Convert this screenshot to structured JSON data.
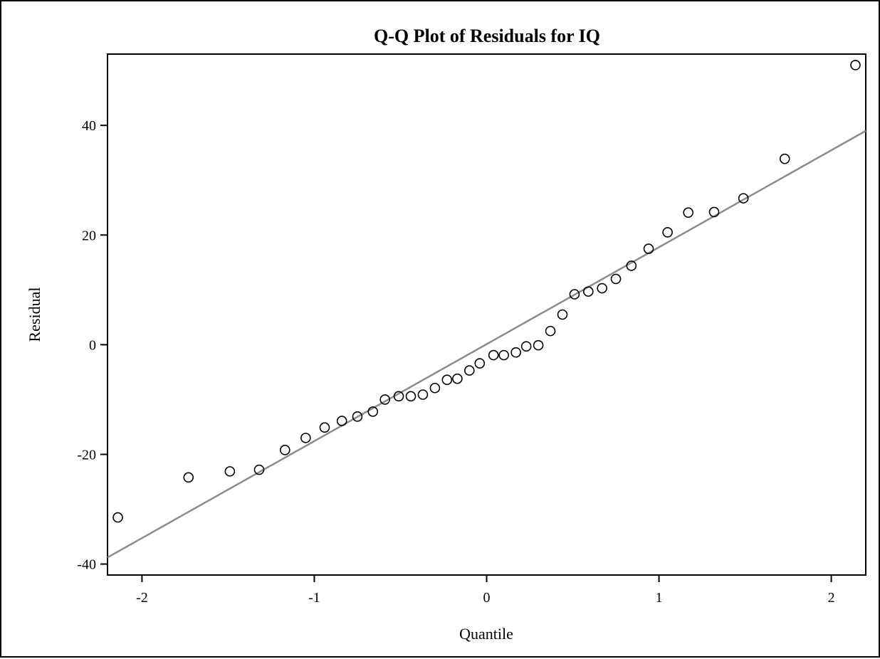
{
  "chart_data": {
    "type": "scatter",
    "title": "Q-Q Plot of Residuals for IQ",
    "xlabel": "Quantile",
    "ylabel": "Residual",
    "xlim": [
      -2.2,
      2.2
    ],
    "ylim": [
      -42,
      53
    ],
    "x_ticks": [
      -2,
      -1,
      0,
      1,
      2
    ],
    "x_tick_labels": [
      "-2",
      "-1",
      "0",
      "1",
      "2"
    ],
    "y_ticks": [
      -40,
      -20,
      0,
      20,
      40
    ],
    "y_tick_labels": [
      "-40",
      "-20",
      "0",
      "20",
      "40"
    ],
    "grid": false,
    "reference_line": {
      "x": [
        -2.2,
        2.2
      ],
      "y": [
        -38.8,
        39.0
      ],
      "color": "#8c8c8c"
    },
    "marker_color": "#000000",
    "points": {
      "x": [
        -2.14,
        -1.73,
        -1.49,
        -1.32,
        -1.17,
        -1.05,
        -0.94,
        -0.84,
        -0.75,
        -0.66,
        -0.59,
        -0.51,
        -0.44,
        -0.37,
        -0.3,
        -0.23,
        -0.17,
        -0.1,
        -0.04,
        0.04,
        0.1,
        0.17,
        0.23,
        0.3,
        0.37,
        0.44,
        0.51,
        0.59,
        0.67,
        0.75,
        0.84,
        0.94,
        1.05,
        1.17,
        1.32,
        1.49,
        1.73,
        2.14
      ],
      "y": [
        -31.5,
        -24.2,
        -23.1,
        -22.8,
        -19.2,
        -17.0,
        -15.1,
        -13.9,
        -13.1,
        -12.2,
        -10.0,
        -9.4,
        -9.4,
        -9.1,
        -7.9,
        -6.4,
        -6.2,
        -4.7,
        -3.4,
        -1.9,
        -1.9,
        -1.4,
        -0.3,
        -0.1,
        2.5,
        5.5,
        9.2,
        9.7,
        10.3,
        12.0,
        14.4,
        17.5,
        20.5,
        24.1,
        24.2,
        26.7,
        33.9,
        51.0
      ]
    }
  }
}
